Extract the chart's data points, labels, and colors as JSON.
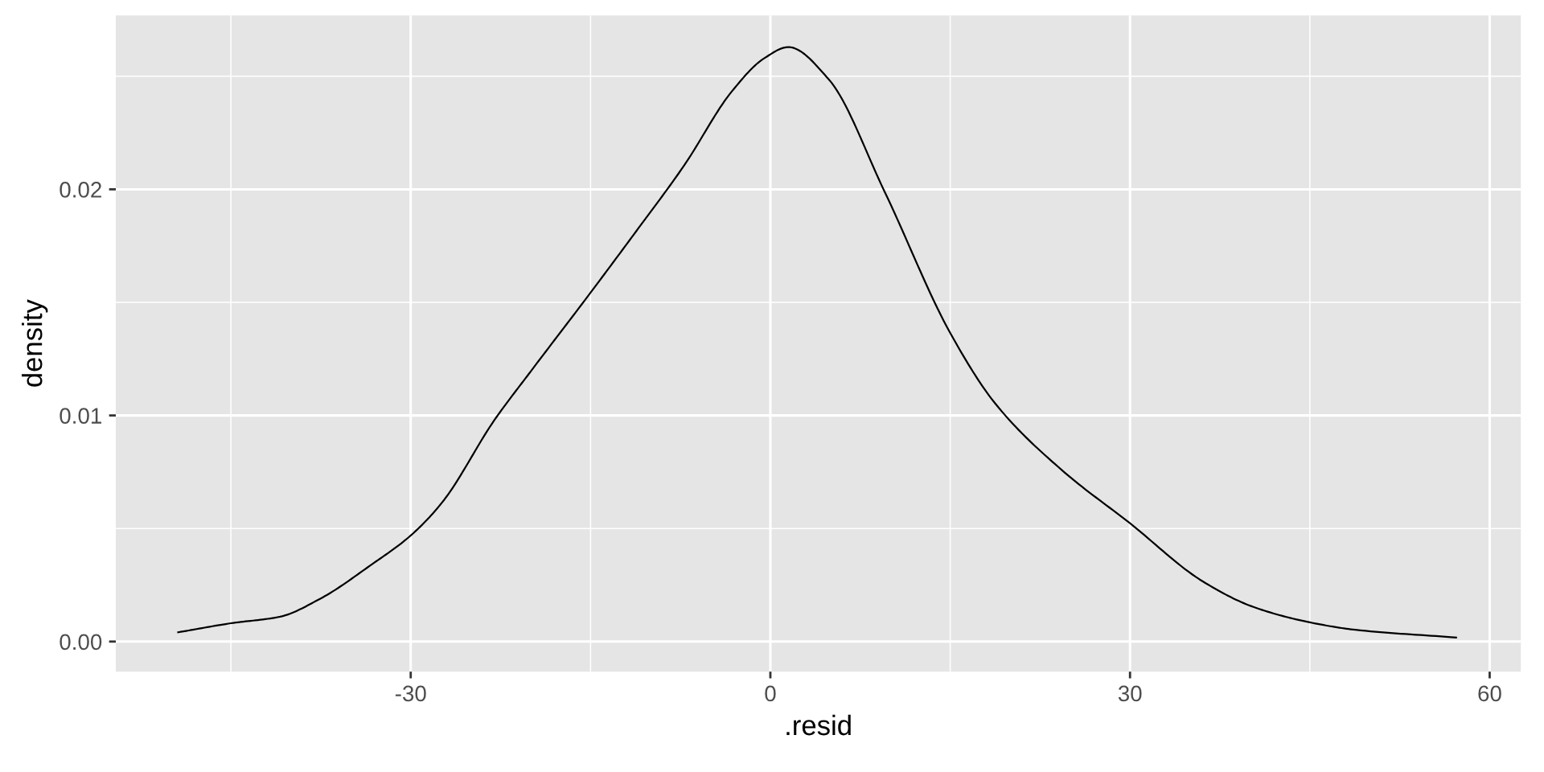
{
  "chart_data": {
    "type": "line",
    "xlabel": ".resid",
    "ylabel": "density",
    "x": [
      -49.4,
      -45,
      -40.9,
      -37.6,
      -33.2,
      -30,
      -27.4,
      -23.0,
      -20.0,
      -15,
      -11.2,
      -7.2,
      -3.2,
      -0.5,
      1.5,
      4.86,
      9.5,
      15.0,
      18.8,
      24.3,
      30,
      36.1,
      40.3,
      45.0,
      48.8,
      57.2
    ],
    "series": [
      {
        "color": "#000000",
        "values": [
          0.00041,
          0.00081,
          0.0011,
          0.00188,
          0.00343,
          0.00469,
          0.00614,
          0.00981,
          0.01194,
          0.01543,
          0.01814,
          0.02105,
          0.02434,
          0.0258,
          0.02629,
          0.02487,
          0.01993,
          0.01365,
          0.0105,
          0.00759,
          0.00523,
          0.00265,
          0.00153,
          0.00085,
          0.00052,
          0.00018
        ]
      }
    ],
    "xlim": [
      -54.6,
      62.6
    ],
    "ylim": [
      -0.00133,
      0.02769
    ],
    "xticks": [
      -30,
      0,
      30,
      60
    ],
    "yticks": [
      {
        "value": 0,
        "label": "0.00"
      },
      {
        "value": 0.01,
        "label": "0.01"
      },
      {
        "value": 0.02,
        "label": "0.02"
      }
    ],
    "grid": true,
    "line_style": "solid",
    "marker": "none"
  }
}
